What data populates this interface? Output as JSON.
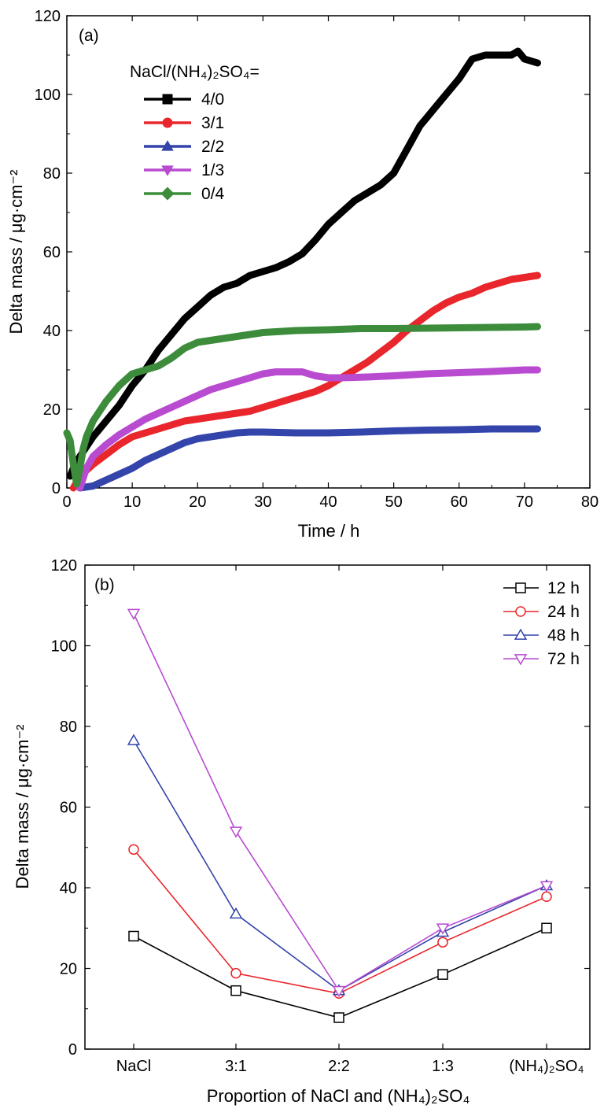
{
  "chart_data": [
    {
      "type": "line",
      "panel_label": "(a)",
      "xlabel": "Time / h",
      "ylabel": "Delta mass / μg·cm⁻²",
      "xlim": [
        0,
        80
      ],
      "ylim": [
        0,
        120
      ],
      "xticks": [
        0,
        10,
        20,
        30,
        40,
        50,
        60,
        70,
        80
      ],
      "yticks": [
        0,
        20,
        40,
        60,
        80,
        100,
        120
      ],
      "legend_title": "NaCl/(NH₄)₂SO₄=",
      "legend_position": "top-left",
      "grid": false,
      "series": [
        {
          "name": "4/0",
          "color": "#000000",
          "marker": "square",
          "x": [
            0.5,
            1,
            2,
            4,
            6,
            8,
            10,
            12,
            14,
            16,
            18,
            20,
            22,
            24,
            26,
            28,
            30,
            32,
            34,
            36,
            38,
            40,
            42,
            44,
            46,
            48,
            50,
            52,
            54,
            56,
            58,
            60,
            62,
            64,
            66,
            68,
            69,
            70,
            72
          ],
          "y": [
            3,
            5,
            8,
            13,
            17,
            21,
            26,
            30,
            35,
            39,
            43,
            46,
            49,
            51,
            52,
            54,
            55,
            56,
            57.5,
            59.5,
            63,
            67,
            70,
            73,
            75,
            77,
            80,
            86,
            92,
            96,
            100,
            104,
            109,
            110,
            110,
            110,
            111,
            109,
            108
          ]
        },
        {
          "name": "3/1",
          "color": "#e8262b",
          "marker": "circle",
          "x": [
            1,
            2,
            4,
            6,
            8,
            10,
            12,
            14,
            16,
            18,
            20,
            22,
            24,
            26,
            28,
            30,
            32,
            34,
            36,
            38,
            40,
            42,
            44,
            46,
            48,
            50,
            52,
            54,
            56,
            58,
            60,
            62,
            64,
            66,
            68,
            70,
            72
          ],
          "y": [
            0,
            3,
            6,
            8.5,
            11,
            13,
            14,
            15,
            16,
            17,
            17.5,
            18,
            18.5,
            19,
            19.5,
            20.5,
            21.5,
            22.5,
            23.5,
            24.5,
            26,
            28,
            30,
            32,
            34.5,
            37,
            40,
            42.5,
            45,
            47,
            48.5,
            49.5,
            51,
            52,
            53,
            53.5,
            54
          ]
        },
        {
          "name": "2/2",
          "color": "#3344aa",
          "marker": "triangle-up",
          "x": [
            2,
            4,
            6,
            8,
            10,
            12,
            14,
            16,
            18,
            20,
            22,
            24,
            26,
            28,
            30,
            35,
            40,
            45,
            50,
            55,
            60,
            65,
            70,
            72
          ],
          "y": [
            0,
            0.5,
            2,
            3.5,
            5,
            7,
            8.5,
            10,
            11.5,
            12.5,
            13,
            13.5,
            14,
            14.2,
            14.2,
            14,
            14,
            14.2,
            14.5,
            14.7,
            14.8,
            15,
            15,
            15
          ]
        },
        {
          "name": "1/3",
          "color": "#b84bd0",
          "marker": "triangle-down",
          "x": [
            2,
            3,
            4,
            6,
            8,
            10,
            12,
            14,
            16,
            18,
            20,
            22,
            24,
            26,
            28,
            30,
            32,
            34,
            36,
            38,
            40,
            42,
            46,
            50,
            55,
            60,
            65,
            70,
            72
          ],
          "y": [
            0,
            5,
            8,
            11,
            13.5,
            15.5,
            17.5,
            19,
            20.5,
            22,
            23.5,
            25,
            26,
            27,
            28,
            29,
            29.5,
            29.5,
            29.5,
            28.5,
            28,
            28,
            28.2,
            28.5,
            29,
            29.3,
            29.6,
            30,
            30
          ]
        },
        {
          "name": "0/4",
          "color": "#3c8c3c",
          "marker": "diamond",
          "x": [
            0,
            0.5,
            1,
            1.5,
            2,
            2.5,
            3,
            4,
            6,
            8,
            10,
            12,
            14,
            16,
            18,
            20,
            22,
            24,
            26,
            28,
            30,
            35,
            40,
            45,
            50,
            55,
            60,
            65,
            70,
            72
          ],
          "y": [
            14,
            12,
            6,
            1,
            5,
            10,
            13,
            17,
            22,
            26,
            29,
            30,
            31,
            33,
            35.5,
            37,
            37.5,
            38,
            38.5,
            39,
            39.5,
            40,
            40.2,
            40.5,
            40.5,
            40.6,
            40.7,
            40.8,
            40.9,
            41
          ]
        }
      ]
    },
    {
      "type": "line",
      "panel_label": "(b)",
      "xlabel": "Proportion of NaCl and (NH₄)₂SO₄",
      "ylabel": "Delta mass / μg·cm⁻²",
      "ylim": [
        0,
        120
      ],
      "yticks": [
        0,
        20,
        40,
        60,
        80,
        100,
        120
      ],
      "categories": [
        "NaCl",
        "3:1",
        "2:2",
        "1:3",
        "(NH₄)₂SO₄"
      ],
      "legend_position": "top-right",
      "grid": false,
      "series": [
        {
          "name": "12 h",
          "color": "#000000",
          "marker": "open-square",
          "values": [
            28,
            14.5,
            7.8,
            18.5,
            30
          ]
        },
        {
          "name": "24 h",
          "color": "#e8262b",
          "marker": "open-circle",
          "values": [
            49.5,
            18.8,
            13.8,
            26.5,
            37.8
          ]
        },
        {
          "name": "48 h",
          "color": "#3344aa",
          "marker": "open-triangle-up",
          "values": [
            76.5,
            33.5,
            14.5,
            29,
            40.5
          ]
        },
        {
          "name": "72 h",
          "color": "#b84bd0",
          "marker": "open-triangle-down",
          "values": [
            108,
            54,
            14.5,
            30,
            40.5
          ]
        }
      ]
    }
  ]
}
